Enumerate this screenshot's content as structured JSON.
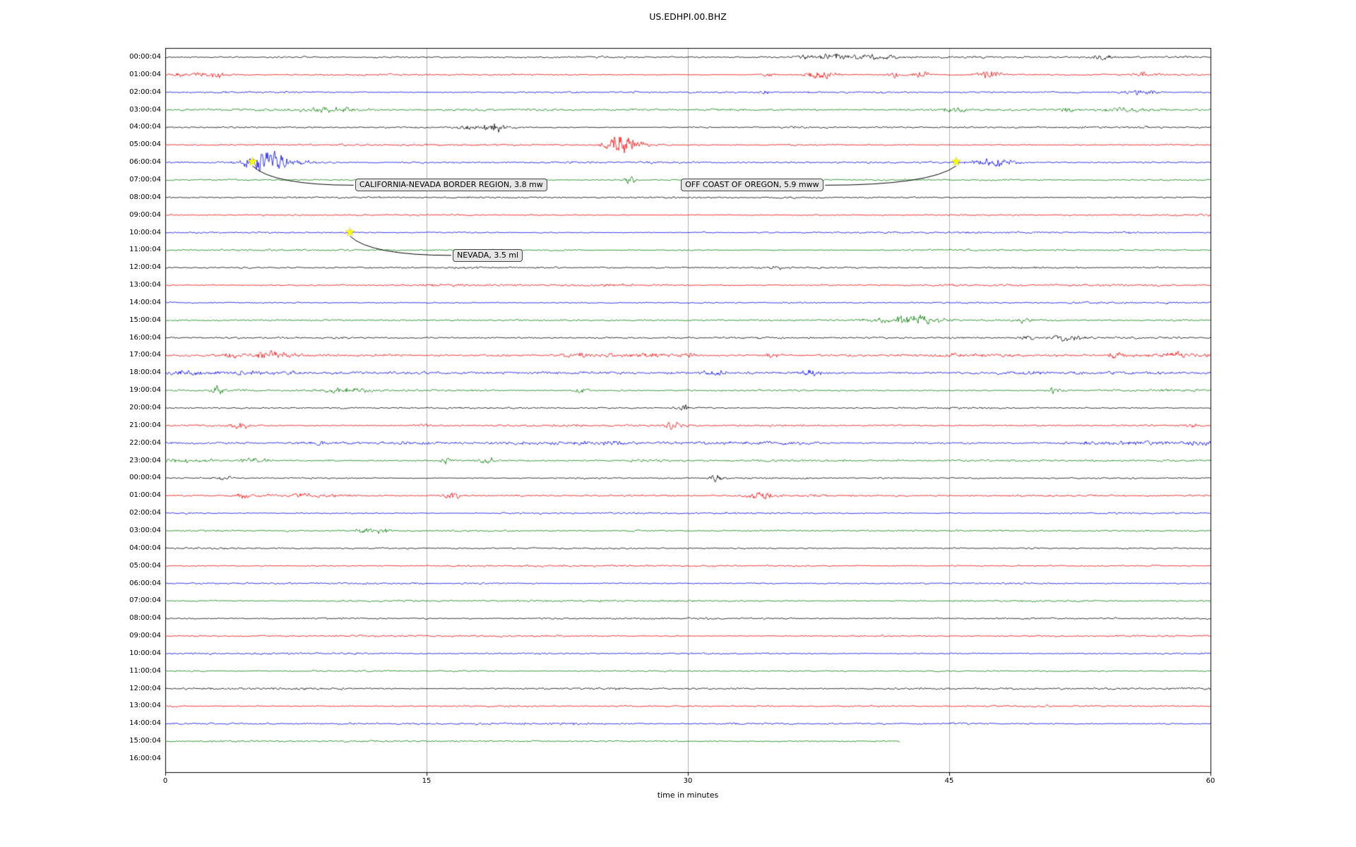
{
  "title": "US.EDHPI.00.BHZ",
  "chart_data": {
    "type": "line",
    "subtype": "seismogram-dayplot",
    "title": "US.EDHPI.00.BHZ",
    "xlabel": "time in minutes",
    "xlim": [
      0,
      60
    ],
    "x_ticks": [
      "0",
      "15",
      "30",
      "45",
      "60"
    ],
    "grid_x_minutes": [
      15,
      30,
      45
    ],
    "grid_color": "#b0b0b0",
    "trace_palette": [
      "#000000",
      "#ff0000",
      "#0000ff",
      "#008000"
    ],
    "star_color": "#ffff00",
    "rows": [
      {
        "label": "00:00:04",
        "amp": 1.2,
        "bursts": [
          [
            36.8,
            0.4,
            3
          ],
          [
            38.2,
            0.5,
            5
          ],
          [
            40.3,
            1.2,
            3
          ],
          [
            53.8,
            0.3,
            5
          ]
        ]
      },
      {
        "label": "01:00:04",
        "amp": 1.3,
        "bursts": [
          [
            0.5,
            0.4,
            4
          ],
          [
            2.6,
            0.7,
            5
          ],
          [
            34.6,
            0.4,
            3
          ],
          [
            37.6,
            0.6,
            7
          ],
          [
            41.8,
            0.4,
            4
          ],
          [
            43.3,
            0.5,
            5
          ],
          [
            47.4,
            0.5,
            6
          ],
          [
            56.2,
            0.3,
            3
          ]
        ]
      },
      {
        "label": "02:00:04",
        "amp": 1.2,
        "bursts": [
          [
            34.5,
            0.3,
            2.5
          ],
          [
            56.1,
            0.6,
            4
          ]
        ]
      },
      {
        "label": "03:00:04",
        "amp": 1.4,
        "bursts": [
          [
            9.4,
            1.0,
            3.5
          ],
          [
            45.2,
            0.6,
            2.5
          ],
          [
            51.7,
            0.4,
            3
          ],
          [
            55.0,
            0.9,
            2.5
          ]
        ]
      },
      {
        "label": "04:00:04",
        "amp": 1.2,
        "bursts": [
          [
            18.3,
            1.0,
            4
          ],
          [
            18.9,
            0.3,
            5
          ]
        ]
      },
      {
        "label": "05:00:04",
        "amp": 1.2,
        "bursts": [
          [
            25.9,
            0.5,
            13
          ],
          [
            26.7,
            0.6,
            7
          ]
        ]
      },
      {
        "label": "06:00:04",
        "amp": 1.5,
        "bursts": [
          [
            5.7,
            0.7,
            12
          ],
          [
            6.5,
            1.1,
            6
          ],
          [
            47.3,
            1.0,
            4.5
          ],
          [
            48.2,
            0.6,
            3.5
          ]
        ]
      },
      {
        "label": "07:00:04",
        "amp": 1.3,
        "bursts": [
          [
            26.7,
            0.25,
            6
          ]
        ]
      },
      {
        "label": "08:00:04",
        "amp": 1.3,
        "bursts": []
      },
      {
        "label": "09:00:04",
        "amp": 1.2,
        "bursts": []
      },
      {
        "label": "10:00:04",
        "amp": 1.3,
        "bursts": []
      },
      {
        "label": "11:00:04",
        "amp": 1.3,
        "bursts": []
      },
      {
        "label": "12:00:04",
        "amp": 1.2,
        "bursts": [
          [
            35.1,
            0.3,
            2.5
          ]
        ]
      },
      {
        "label": "13:00:04",
        "amp": 1.4,
        "bursts": []
      },
      {
        "label": "14:00:04",
        "amp": 1.3,
        "bursts": []
      },
      {
        "label": "15:00:04",
        "amp": 1.4,
        "bursts": [
          [
            41.8,
            0.8,
            5
          ],
          [
            43.5,
            0.7,
            6
          ],
          [
            49.2,
            0.3,
            4.5
          ]
        ]
      },
      {
        "label": "16:00:04",
        "amp": 1.4,
        "bursts": [
          [
            49.5,
            0.3,
            3.5
          ],
          [
            51.8,
            0.7,
            4.5
          ]
        ]
      },
      {
        "label": "17:00:04",
        "amp": 1.7,
        "bursts": [
          [
            3.7,
            0.5,
            3.5
          ],
          [
            6.1,
            0.6,
            5.5
          ],
          [
            23.6,
            0.6,
            4
          ],
          [
            25.8,
            0.5,
            3
          ],
          [
            27.9,
            0.7,
            4
          ],
          [
            30.2,
            0.4,
            3.5
          ],
          [
            34.9,
            0.3,
            3.5
          ],
          [
            45.2,
            0.3,
            3
          ],
          [
            54.5,
            0.4,
            3.5
          ],
          [
            58.0,
            0.4,
            3.5
          ]
        ]
      },
      {
        "label": "18:00:04",
        "amp": 2.1,
        "bursts": [
          [
            0.9,
            0.7,
            4
          ],
          [
            31.6,
            0.4,
            4.5
          ],
          [
            37.1,
            0.5,
            3.5
          ]
        ]
      },
      {
        "label": "19:00:04",
        "amp": 1.5,
        "bursts": [
          [
            3.0,
            0.25,
            6
          ],
          [
            10.2,
            0.9,
            3.5
          ],
          [
            23.9,
            0.3,
            5
          ],
          [
            51.1,
            0.3,
            6
          ]
        ]
      },
      {
        "label": "20:00:04",
        "amp": 1.3,
        "bursts": [
          [
            29.7,
            0.25,
            6
          ]
        ]
      },
      {
        "label": "21:00:04",
        "amp": 1.4,
        "bursts": [
          [
            4.3,
            0.35,
            6
          ],
          [
            14.7,
            0.3,
            2.5
          ],
          [
            29.2,
            0.4,
            5
          ],
          [
            59.0,
            0.3,
            3.5
          ]
        ]
      },
      {
        "label": "22:00:04",
        "amp": 2.3,
        "bursts": [
          [
            9.0,
            0.4,
            2.5
          ],
          [
            59.5,
            0.3,
            4
          ]
        ]
      },
      {
        "label": "23:00:04",
        "amp": 1.7,
        "bursts": [
          [
            1.2,
            1.2,
            3
          ],
          [
            5.1,
            0.6,
            4
          ],
          [
            16.2,
            0.25,
            6
          ],
          [
            18.5,
            0.3,
            5
          ]
        ]
      },
      {
        "label": "00:00:04",
        "amp": 1.2,
        "bursts": [
          [
            3.4,
            0.3,
            3.5
          ],
          [
            31.6,
            0.25,
            7
          ]
        ]
      },
      {
        "label": "01:00:04",
        "amp": 1.4,
        "bursts": [
          [
            4.5,
            0.3,
            4.5
          ],
          [
            7.5,
            1.5,
            2.5
          ],
          [
            16.5,
            0.4,
            4.5
          ],
          [
            34.3,
            0.6,
            4.5
          ]
        ]
      },
      {
        "label": "02:00:04",
        "amp": 1.2,
        "bursts": []
      },
      {
        "label": "03:00:04",
        "amp": 1.3,
        "bursts": [
          [
            11.7,
            0.6,
            4
          ],
          [
            12.5,
            0.3,
            3.5
          ]
        ]
      },
      {
        "label": "04:00:04",
        "amp": 1.2,
        "bursts": []
      },
      {
        "label": "05:00:04",
        "amp": 1.3,
        "bursts": []
      },
      {
        "label": "06:00:04",
        "amp": 1.2,
        "bursts": []
      },
      {
        "label": "07:00:04",
        "amp": 1.3,
        "bursts": []
      },
      {
        "label": "08:00:04",
        "amp": 1.3,
        "bursts": []
      },
      {
        "label": "09:00:04",
        "amp": 1.2,
        "bursts": []
      },
      {
        "label": "10:00:04",
        "amp": 1.3,
        "bursts": []
      },
      {
        "label": "11:00:04",
        "amp": 1.3,
        "bursts": []
      },
      {
        "label": "12:00:04",
        "amp": 1.4,
        "bursts": []
      },
      {
        "label": "13:00:04",
        "amp": 1.3,
        "bursts": []
      },
      {
        "label": "14:00:04",
        "amp": 1.4,
        "bursts": []
      },
      {
        "label": "15:00:04",
        "amp": 1.4,
        "len": 0.703,
        "bursts": []
      },
      {
        "label": "16:00:04",
        "amp": 0,
        "len": 0,
        "bursts": []
      }
    ],
    "annotations": [
      {
        "label": "CALIFORNIA-NEVADA BORDER REGION, 3.8 mw",
        "star_row": 6,
        "star_minute": 5.0,
        "label_row": 7.3,
        "label_minute": 10.9,
        "attach": "left"
      },
      {
        "label": "OFF COAST OF OREGON, 5.9 mww",
        "star_row": 6,
        "star_minute": 45.4,
        "label_row": 7.3,
        "label_minute": 29.6,
        "attach": "right"
      },
      {
        "label": "NEVADA, 3.5 ml",
        "star_row": 10,
        "star_minute": 10.6,
        "label_row": 11.3,
        "label_minute": 16.5,
        "attach": "left"
      }
    ]
  }
}
